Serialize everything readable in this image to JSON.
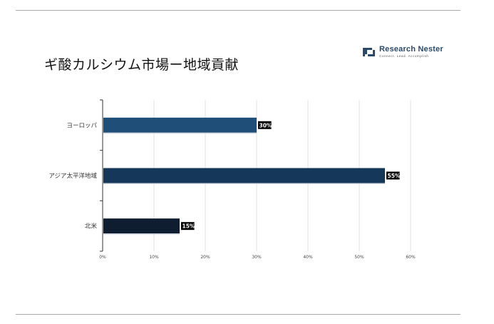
{
  "header": {
    "title": "ギ酸カルシウム市場ー地域貢献"
  },
  "logo": {
    "name": "Research Nester",
    "tagline": "Connect. Lead. Accomplish",
    "icon": "research-nester-logo-mark",
    "color": "#2b4a6b"
  },
  "chart_data": {
    "type": "bar",
    "orientation": "horizontal",
    "title": "ギ酸カルシウム市場ー地域貢献",
    "categories": [
      "ヨーロッパ",
      "アジア太平洋地域",
      "北米"
    ],
    "values": [
      30,
      55,
      15
    ],
    "value_labels": [
      "30%",
      "55%",
      "15%"
    ],
    "colors": [
      "#1f4e79",
      "#15375a",
      "#0f1d30"
    ],
    "xlim": [
      0,
      60
    ],
    "xticks": [
      "0%",
      "10%",
      "20%",
      "30%",
      "40%",
      "50%",
      "60%"
    ],
    "xtick_values": [
      0,
      10,
      20,
      30,
      40,
      50,
      60
    ],
    "grid": true,
    "legend": "none"
  }
}
